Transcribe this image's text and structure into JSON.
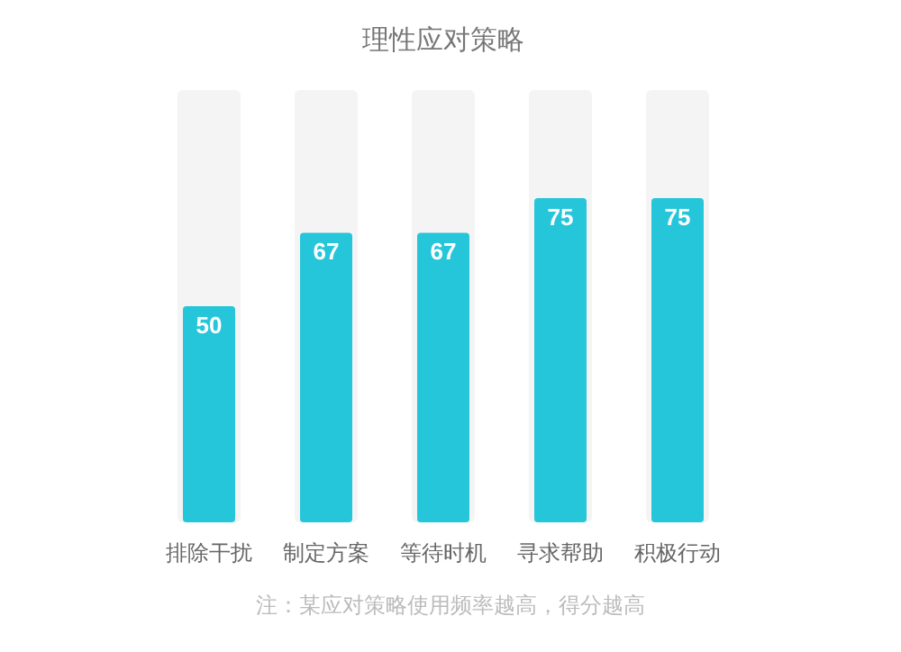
{
  "chart_data": {
    "type": "bar",
    "title": "理性应对策略",
    "categories": [
      "排除干扰",
      "制定方案",
      "等待时机",
      "寻求帮助",
      "积极行动"
    ],
    "values": [
      50,
      67,
      67,
      75,
      75
    ],
    "color": "#26c6da",
    "ylim": [
      0,
      100
    ],
    "data_labels": true,
    "annotations": [
      "注：某应对策略使用频率越高，得分越高"
    ]
  }
}
